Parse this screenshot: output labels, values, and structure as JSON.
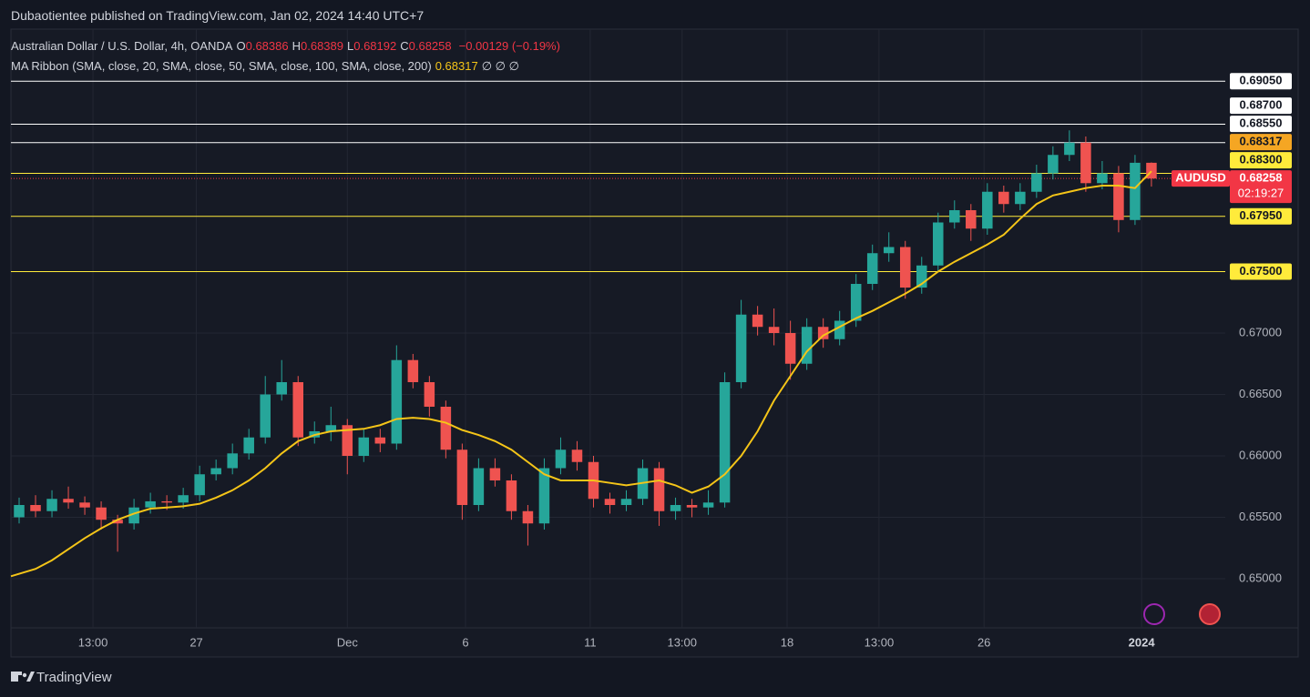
{
  "header": {
    "publisher": "Dubaotientee published on TradingView.com, Jan 02, 2024 14:40 UTC+7"
  },
  "chart_data": {
    "type": "candlestick",
    "title": "Australian Dollar / U.S. Dollar, 4h, OANDA",
    "ohlc_legend": [
      {
        "key": "O",
        "value": "0.68386"
      },
      {
        "key": "H",
        "value": "0.68389"
      },
      {
        "key": "L",
        "value": "0.68192"
      },
      {
        "key": "C",
        "value": "0.68258"
      }
    ],
    "change": "−0.00129 (−0.19%)",
    "xlim": [
      0,
      74
    ],
    "xticks": [
      {
        "value": 5,
        "label": "13:00"
      },
      {
        "value": 11.3,
        "label": "27"
      },
      {
        "value": 20.5,
        "label": "Dec"
      },
      {
        "value": 27.7,
        "label": "6"
      },
      {
        "value": 35.3,
        "label": "11"
      },
      {
        "value": 40.9,
        "label": "13:00"
      },
      {
        "value": 47.3,
        "label": "18"
      },
      {
        "value": 52.9,
        "label": "13:00"
      },
      {
        "value": 59.3,
        "label": "26"
      },
      {
        "value": 68.9,
        "label": "2024"
      }
    ],
    "ylim": [
      0.646,
      0.69474
    ],
    "yticks": [
      {
        "value": 0.65,
        "label": "0.65000"
      },
      {
        "value": 0.655,
        "label": "0.65500"
      },
      {
        "value": 0.66,
        "label": "0.66000"
      },
      {
        "value": 0.665,
        "label": "0.66500"
      },
      {
        "value": 0.67,
        "label": "0.67000"
      }
    ],
    "grid": true,
    "candles": {
      "up_color": "#26a69a",
      "down_color": "#ef5350",
      "open": [
        0.655,
        0.656,
        0.6555,
        0.6565,
        0.6562,
        0.6558,
        0.6548,
        0.6545,
        0.6558,
        0.6563,
        0.6562,
        0.6568,
        0.6585,
        0.659,
        0.6602,
        0.6615,
        0.665,
        0.666,
        0.6615,
        0.662,
        0.6625,
        0.66,
        0.6615,
        0.661,
        0.6678,
        0.666,
        0.664,
        0.6605,
        0.656,
        0.659,
        0.658,
        0.6555,
        0.6545,
        0.659,
        0.6605,
        0.6595,
        0.6565,
        0.656,
        0.6565,
        0.659,
        0.6555,
        0.656,
        0.6558,
        0.6562,
        0.666,
        0.6715,
        0.6705,
        0.67,
        0.6675,
        0.6705,
        0.6695,
        0.671,
        0.674,
        0.6765,
        0.677,
        0.6737,
        0.6755,
        0.679,
        0.68,
        0.6785,
        0.6815,
        0.6805,
        0.6815,
        0.683,
        0.6845,
        0.6855,
        0.6822,
        0.683,
        0.6792,
        0.68386
      ],
      "high": [
        0.6566,
        0.6568,
        0.6572,
        0.6575,
        0.6567,
        0.6563,
        0.6552,
        0.6565,
        0.657,
        0.6568,
        0.6574,
        0.6592,
        0.6597,
        0.661,
        0.6622,
        0.6665,
        0.6678,
        0.6665,
        0.6628,
        0.664,
        0.663,
        0.6622,
        0.6622,
        0.669,
        0.6683,
        0.6665,
        0.6645,
        0.661,
        0.6598,
        0.6598,
        0.6585,
        0.656,
        0.6598,
        0.6615,
        0.6612,
        0.66,
        0.657,
        0.6572,
        0.6597,
        0.6595,
        0.6566,
        0.6565,
        0.6572,
        0.6668,
        0.6727,
        0.6722,
        0.672,
        0.671,
        0.6712,
        0.6712,
        0.6718,
        0.6748,
        0.6772,
        0.6782,
        0.6775,
        0.6762,
        0.6798,
        0.6808,
        0.6805,
        0.6822,
        0.682,
        0.6822,
        0.6837,
        0.6852,
        0.6865,
        0.686,
        0.684,
        0.6836,
        0.6845,
        0.68389
      ],
      "low": [
        0.6545,
        0.655,
        0.655,
        0.6557,
        0.6552,
        0.654,
        0.6522,
        0.654,
        0.6553,
        0.6556,
        0.6557,
        0.6563,
        0.658,
        0.6585,
        0.6597,
        0.661,
        0.6645,
        0.6608,
        0.661,
        0.6612,
        0.6585,
        0.6595,
        0.6603,
        0.6605,
        0.6655,
        0.6632,
        0.6598,
        0.6548,
        0.6555,
        0.6575,
        0.6548,
        0.6527,
        0.654,
        0.6585,
        0.6588,
        0.6558,
        0.6553,
        0.6555,
        0.656,
        0.6543,
        0.6548,
        0.655,
        0.6552,
        0.6558,
        0.6655,
        0.6698,
        0.669,
        0.6662,
        0.667,
        0.6688,
        0.669,
        0.6705,
        0.6735,
        0.6758,
        0.6728,
        0.6732,
        0.675,
        0.6785,
        0.6775,
        0.678,
        0.6798,
        0.68,
        0.681,
        0.6825,
        0.684,
        0.6815,
        0.6817,
        0.6782,
        0.6788,
        0.68192
      ],
      "close": [
        0.656,
        0.6555,
        0.6565,
        0.6562,
        0.6558,
        0.6548,
        0.6545,
        0.6558,
        0.6563,
        0.6562,
        0.6568,
        0.6585,
        0.659,
        0.6602,
        0.6615,
        0.665,
        0.666,
        0.6615,
        0.662,
        0.6625,
        0.66,
        0.6615,
        0.661,
        0.6678,
        0.666,
        0.664,
        0.6605,
        0.656,
        0.659,
        0.658,
        0.6555,
        0.6545,
        0.659,
        0.6605,
        0.6595,
        0.6565,
        0.656,
        0.6565,
        0.659,
        0.6555,
        0.656,
        0.6558,
        0.6562,
        0.666,
        0.6715,
        0.6705,
        0.67,
        0.6675,
        0.6705,
        0.6695,
        0.671,
        0.674,
        0.6765,
        0.677,
        0.6737,
        0.6755,
        0.679,
        0.68,
        0.6785,
        0.6815,
        0.6805,
        0.6815,
        0.683,
        0.6845,
        0.6855,
        0.6822,
        0.683,
        0.6792,
        0.68386,
        0.68258
      ]
    },
    "series": [
      {
        "name": "MA Ribbon (SMA, close, 20, SMA, close, 50, SMA, close, 100, SMA, close, 200)",
        "color": "#f5c518",
        "values": [
          0.6502,
          0.6508,
          0.6515,
          0.6524,
          0.6533,
          0.6541,
          0.6548,
          0.6553,
          0.6557,
          0.6558,
          0.6559,
          0.6561,
          0.6566,
          0.6572,
          0.658,
          0.659,
          0.6602,
          0.6612,
          0.6617,
          0.662,
          0.6621,
          0.6622,
          0.6625,
          0.663,
          0.6631,
          0.663,
          0.6627,
          0.6621,
          0.6617,
          0.6612,
          0.6605,
          0.6595,
          0.6585,
          0.658,
          0.658,
          0.658,
          0.6578,
          0.6576,
          0.6578,
          0.658,
          0.6576,
          0.657,
          0.6575,
          0.6585,
          0.66,
          0.662,
          0.6645,
          0.6665,
          0.6685,
          0.6698,
          0.6705,
          0.6712,
          0.6718,
          0.6725,
          0.6732,
          0.674,
          0.675,
          0.6758,
          0.6765,
          0.6772,
          0.678,
          0.6793,
          0.6805,
          0.6812,
          0.6815,
          0.6818,
          0.682,
          0.682,
          0.6818,
          0.68317
        ],
        "last_value": {
          "value": 0.68317,
          "label": "0.68317"
        },
        "extra": "∅ ∅ ∅"
      }
    ],
    "levels": [
      {
        "value": 0.6905,
        "label": "0.69050",
        "color": "#ffffff"
      },
      {
        "value": 0.687,
        "label": "0.68700",
        "color": "#ffffff"
      },
      {
        "value": 0.6855,
        "label": "0.68550",
        "color": "#ffffff"
      },
      {
        "value": 0.683,
        "label": "0.68300",
        "color": "#ffeb3b"
      },
      {
        "value": 0.6795,
        "label": "0.67950",
        "color": "#ffeb3b"
      },
      {
        "value": 0.675,
        "label": "0.67500",
        "color": "#ffeb3b"
      }
    ],
    "last_price": {
      "symbol": "AUDUSD",
      "value": 0.68258,
      "label": "0.68258",
      "countdown": "02:19:27",
      "color": "#f23645"
    }
  },
  "footer": {
    "brand": "TradingView"
  }
}
